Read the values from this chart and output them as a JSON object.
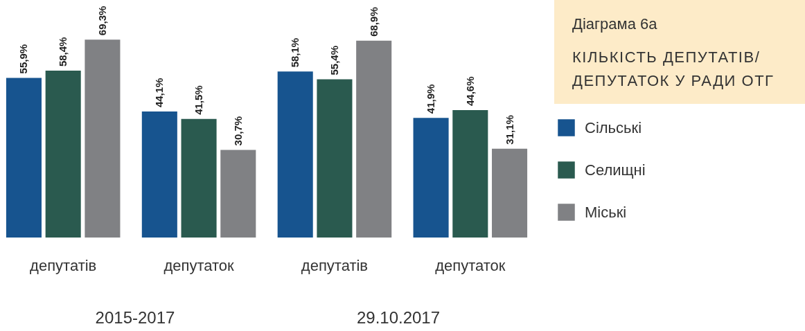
{
  "chart_data": {
    "type": "bar",
    "title": "Діаграма 6а",
    "subtitle": "КІЛЬКІСТЬ ДЕПУТАТІВ/ ДЕПУТАТОК У РАДИ ОТГ",
    "categories": [
      "депутатів",
      "депутаток",
      "депутатів",
      "депутаток"
    ],
    "series": [
      {
        "name": "Сільські",
        "color": "#17548f",
        "values": [
          55.9,
          44.1,
          58.1,
          41.9
        ],
        "value_labels": [
          "55,9%",
          "44,1%",
          "58,1%",
          "41,9%"
        ]
      },
      {
        "name": "Селищні",
        "color": "#2a5a4f",
        "values": [
          58.4,
          41.5,
          55.4,
          44.6
        ],
        "value_labels": [
          "58,4%",
          "41,5%",
          "55,4%",
          "44,6%"
        ]
      },
      {
        "name": "Міські",
        "color": "#808184",
        "values": [
          69.3,
          30.7,
          68.9,
          31.1
        ],
        "value_labels": [
          "69,3%",
          "30,7%",
          "68,9%",
          "31,1%"
        ]
      }
    ],
    "annotations": [
      "2015-2017",
      "29.10.2017"
    ],
    "legend": "right"
  }
}
